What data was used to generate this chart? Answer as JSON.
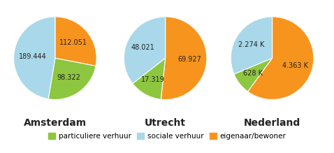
{
  "charts": [
    {
      "title": "Amsterdam",
      "values": [
        112051,
        98322,
        189444
      ],
      "labels": [
        "112.051",
        "98.322",
        "189.444"
      ],
      "colors": [
        "#f7941d",
        "#8dc63f",
        "#a8d8ea"
      ],
      "label_offsets": [
        0.58,
        0.58,
        0.55
      ]
    },
    {
      "title": "Utrecht",
      "values": [
        69927,
        17319,
        48021
      ],
      "labels": [
        "69.927",
        "17.319",
        "48.021"
      ],
      "colors": [
        "#f7941d",
        "#8dc63f",
        "#a8d8ea"
      ],
      "label_offsets": [
        0.58,
        0.6,
        0.6
      ]
    },
    {
      "title": "Nederland",
      "values": [
        4363,
        628,
        2274
      ],
      "labels": [
        "4.363 K",
        "628 K",
        "2.274 K"
      ],
      "colors": [
        "#f7941d",
        "#8dc63f",
        "#a8d8ea"
      ],
      "label_offsets": [
        0.58,
        0.6,
        0.6
      ]
    }
  ],
  "legend": [
    {
      "label": "particuliere verhuur",
      "color": "#8dc63f"
    },
    {
      "label": "sociale verhuur",
      "color": "#a8d8ea"
    },
    {
      "label": "eigenaar/bewoner",
      "color": "#f7941d"
    }
  ],
  "background_color": "#ffffff",
  "title_fontsize": 10,
  "label_fontsize": 7.0,
  "legend_fontsize": 7.5
}
